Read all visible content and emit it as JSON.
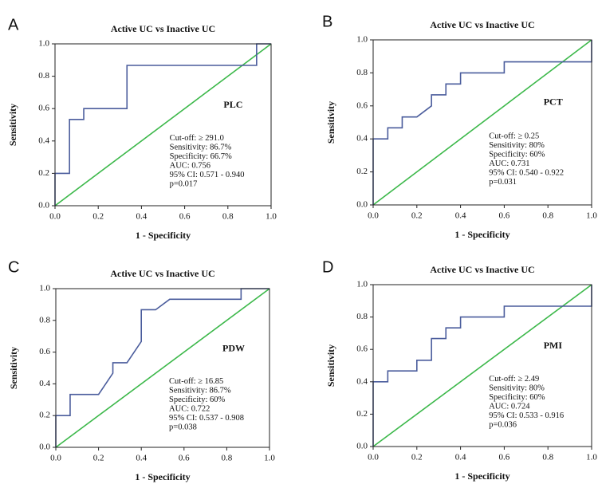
{
  "chart_data": [
    {
      "type": "line",
      "panel": "A",
      "title": "Active UC vs Inactive UC",
      "marker": "PLC",
      "x_label": "1 - Specificity",
      "y_label": "Sensitivity",
      "color": "#4a5c9c",
      "reference_color": "#3cb84a",
      "x": [
        0,
        0,
        0.067,
        0.067,
        0.133,
        0.133,
        0.333,
        0.333,
        0.933,
        0.933,
        1.0
      ],
      "values": [
        0,
        0.2,
        0.2,
        0.533,
        0.533,
        0.6,
        0.6,
        0.867,
        0.867,
        1.0,
        1.0
      ],
      "annotations": [
        "Cut-off: ≥ 291.0",
        "Sensitivity: 86.7%",
        "Specificity: 66.7%",
        "AUC: 0.756",
        "95% CI: 0.571 - 0.940",
        "p=0.017"
      ],
      "xlim": [
        0,
        1
      ],
      "ylim": [
        0,
        1
      ],
      "xticks": [
        {
          "value": 0,
          "label": "0.0"
        },
        0.2,
        0.4,
        0.6,
        0.8,
        {
          "value": 1,
          "label": "1.0"
        }
      ],
      "yticks": [
        {
          "value": 0,
          "label": "0.0"
        },
        0.2,
        0.4,
        0.6,
        0.8,
        {
          "value": 1,
          "label": "1.0"
        }
      ]
    },
    {
      "type": "line",
      "panel": "B",
      "title": "Active UC vs Inactive UC",
      "marker": "PCT",
      "x_label": "1 - Specificity",
      "y_label": "Sensitivity",
      "color": "#4a5c9c",
      "reference_color": "#3cb84a",
      "x": [
        0,
        0,
        0.067,
        0.067,
        0.133,
        0.133,
        0.2,
        0.267,
        0.267,
        0.333,
        0.333,
        0.4,
        0.4,
        0.6,
        0.6,
        1.0,
        1.0
      ],
      "values": [
        0,
        0.4,
        0.4,
        0.467,
        0.467,
        0.533,
        0.533,
        0.6,
        0.667,
        0.667,
        0.733,
        0.733,
        0.8,
        0.8,
        0.867,
        0.867,
        1.0
      ],
      "annotations": [
        "Cut-off: ≥ 0.25",
        "Sensitivity: 80%",
        "Specificity: 60%",
        "AUC: 0.731",
        "95% CI: 0.540 - 0.922",
        "p=0.031"
      ],
      "xlim": [
        0,
        1
      ],
      "ylim": [
        0,
        1
      ],
      "xticks": [
        {
          "value": 0,
          "label": "0.0"
        },
        0.2,
        0.4,
        0.6,
        0.8,
        {
          "value": 1,
          "label": "1.0"
        }
      ],
      "yticks": [
        {
          "value": 0,
          "label": "0.0"
        },
        0.2,
        0.4,
        0.6,
        0.8,
        {
          "value": 1,
          "label": "1.0"
        }
      ]
    },
    {
      "type": "line",
      "panel": "C",
      "title": "Active UC vs Inactive UC",
      "marker": "PDW",
      "x_label": "1 - Specificity",
      "y_label": "Sensitivity",
      "color": "#4a5c9c",
      "reference_color": "#3cb84a",
      "x": [
        0,
        0,
        0.067,
        0.067,
        0.2,
        0.267,
        0.267,
        0.333,
        0.4,
        0.4,
        0.467,
        0.533,
        0.867,
        0.867,
        1.0
      ],
      "values": [
        0,
        0.2,
        0.2,
        0.333,
        0.333,
        0.467,
        0.533,
        0.533,
        0.667,
        0.867,
        0.867,
        0.933,
        0.933,
        1.0,
        1.0
      ],
      "annotations": [
        "Cut-off: ≥ 16.85",
        "Sensitivity: 86.7%",
        "Specificity: 60%",
        "AUC: 0.722",
        "95% CI: 0.537 - 0.908",
        "p=0.038"
      ],
      "xlim": [
        0,
        1
      ],
      "ylim": [
        0,
        1
      ],
      "xticks": [
        {
          "value": 0,
          "label": "0.0"
        },
        0.2,
        0.4,
        0.6,
        0.8,
        {
          "value": 1,
          "label": "1.0"
        }
      ],
      "yticks": [
        {
          "value": 0,
          "label": "0.0"
        },
        0.2,
        0.4,
        0.6,
        0.8,
        {
          "value": 1,
          "label": "1.0"
        }
      ]
    },
    {
      "type": "line",
      "panel": "D",
      "title": "Active UC vs Inactive UC",
      "marker": "PMI",
      "x_label": "1 - Specificity",
      "y_label": "Sensitivity",
      "color": "#4a5c9c",
      "reference_color": "#3cb84a",
      "x": [
        0,
        0,
        0.067,
        0.067,
        0.2,
        0.2,
        0.267,
        0.267,
        0.333,
        0.333,
        0.4,
        0.4,
        0.6,
        0.6,
        1.0,
        1.0
      ],
      "values": [
        0,
        0.4,
        0.4,
        0.467,
        0.467,
        0.533,
        0.533,
        0.667,
        0.667,
        0.733,
        0.733,
        0.8,
        0.8,
        0.867,
        0.867,
        1.0
      ],
      "annotations": [
        "Cut-off: ≥ 2.49",
        "Sensitivity: 80%",
        "Specificity: 60%",
        "AUC: 0.724",
        "95% CI: 0.533 - 0.916",
        "p=0.036"
      ],
      "xlim": [
        0,
        1
      ],
      "ylim": [
        0,
        1
      ],
      "xticks": [
        {
          "value": 0,
          "label": "0.0"
        },
        0.2,
        0.4,
        0.6,
        0.8,
        {
          "value": 1,
          "label": "1.0"
        }
      ],
      "yticks": [
        {
          "value": 0,
          "label": "0.0"
        },
        0.2,
        0.4,
        0.6,
        0.8,
        {
          "value": 1,
          "label": "1.0"
        }
      ]
    }
  ]
}
